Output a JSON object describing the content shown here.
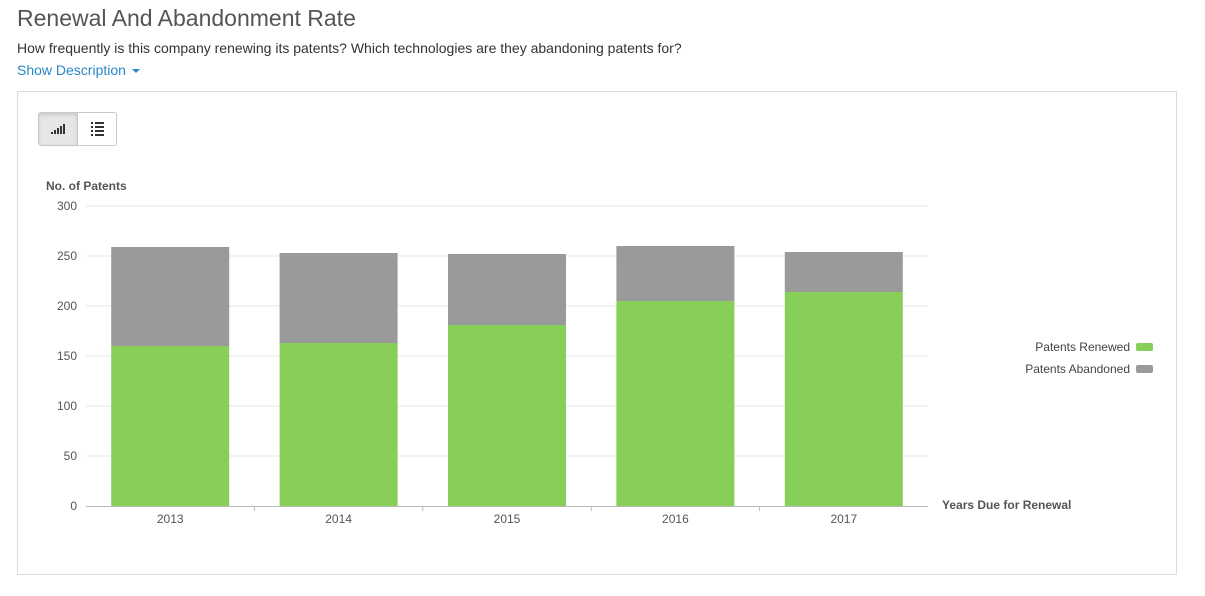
{
  "header": {
    "title": "Renewal And Abandonment Rate",
    "subtitle": "How frequently is this company renewing its patents? Which technologies are they abandoning patents for?",
    "show_description": "Show Description"
  },
  "toolbar": {
    "chart_view_icon": "bar-chart-icon",
    "list_view_icon": "list-icon"
  },
  "colors": {
    "renewed": "#88cf5a",
    "abandoned": "#9a9a9a"
  },
  "chart_data": {
    "type": "bar",
    "stacked": true,
    "title": "",
    "ylabel": "No. of Patents",
    "xlabel": "Years Due for Renewal",
    "categories": [
      "2013",
      "2014",
      "2015",
      "2016",
      "2017"
    ],
    "ylim": [
      0,
      300
    ],
    "yticks": [
      0,
      50,
      100,
      150,
      200,
      250,
      300
    ],
    "grid": true,
    "legend_position": "right",
    "series": [
      {
        "name": "Patents Renewed",
        "color": "#88cf5a",
        "values": [
          160,
          163,
          181,
          205,
          214
        ]
      },
      {
        "name": "Patents Abandoned",
        "color": "#9a9a9a",
        "values": [
          99,
          90,
          71,
          55,
          40
        ]
      }
    ]
  }
}
